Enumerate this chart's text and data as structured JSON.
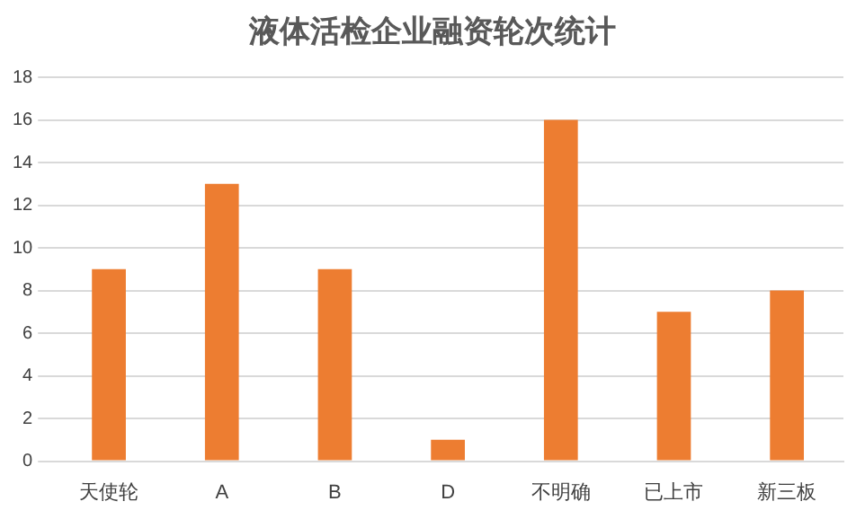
{
  "chart_data": {
    "type": "bar",
    "title": "液体活检企业融资轮次统计",
    "categories": [
      "天使轮",
      "A",
      "B",
      "D",
      "不明确",
      "已上市",
      "新三板"
    ],
    "values": [
      9,
      13,
      9,
      1,
      16,
      7,
      8
    ],
    "color": "#ed7d31",
    "ylim": [
      0,
      18
    ],
    "yticks": [
      0,
      2,
      4,
      6,
      8,
      10,
      12,
      14,
      16,
      18
    ],
    "grid": "y",
    "legend": false
  }
}
